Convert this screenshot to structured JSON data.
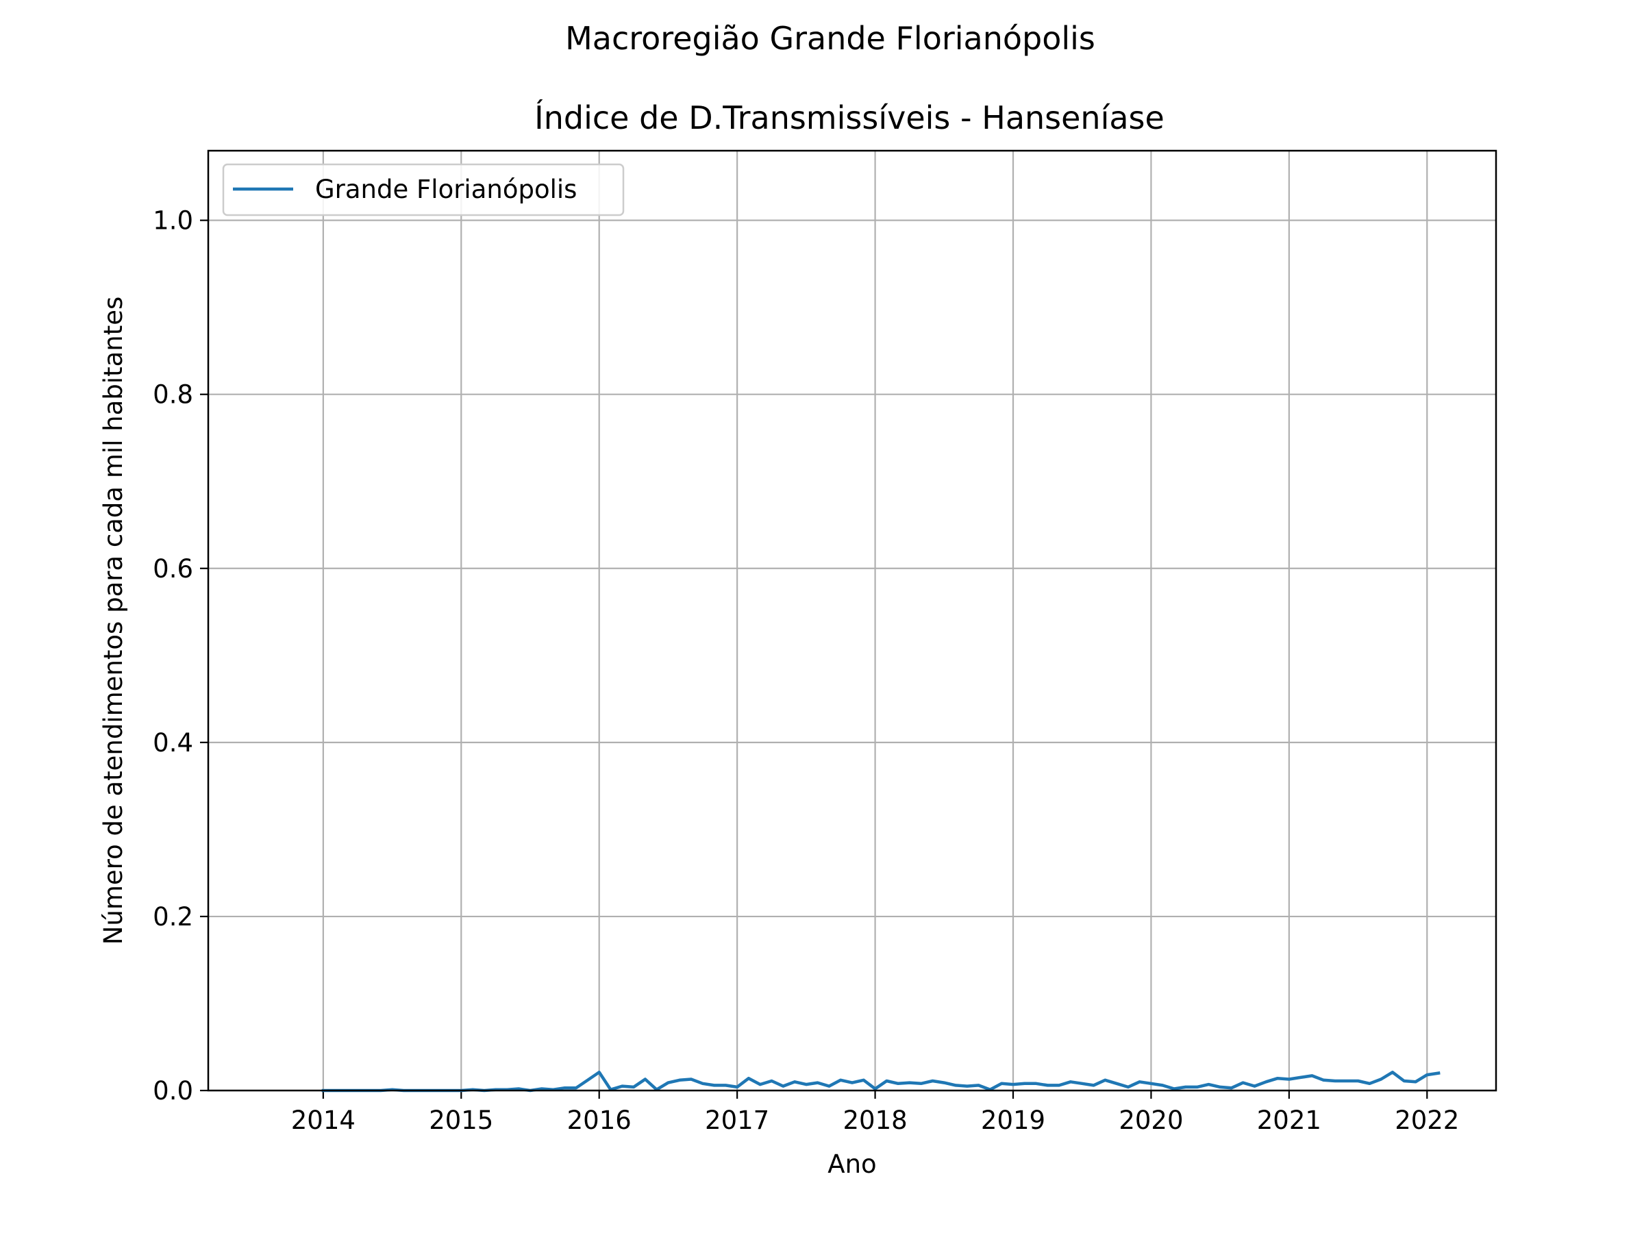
{
  "chart_data": {
    "type": "line",
    "suptitle": "Macroregião Grande Florianópolis",
    "title": "Índice de D.Transmissíveis - Hanseníase",
    "xlabel": "Ano",
    "ylabel": "Número de atendimentos para cada mil habitantes",
    "xlim": [
      "2013-03",
      "2022-07"
    ],
    "ylim": [
      0,
      1.08
    ],
    "xticks": [
      "2014",
      "2015",
      "2016",
      "2017",
      "2018",
      "2019",
      "2020",
      "2021",
      "2022"
    ],
    "yticks": [
      "0.0",
      "0.2",
      "0.4",
      "0.6",
      "0.8",
      "1.0"
    ],
    "grid": true,
    "legend_position": "top-left",
    "series_color": "#1f77b4",
    "series": [
      {
        "name": "Grande Florianópolis",
        "x": [
          "2014-01",
          "2014-02",
          "2014-03",
          "2014-04",
          "2014-05",
          "2014-06",
          "2014-07",
          "2014-08",
          "2014-09",
          "2014-10",
          "2014-11",
          "2014-12",
          "2015-01",
          "2015-02",
          "2015-03",
          "2015-04",
          "2015-05",
          "2015-06",
          "2015-07",
          "2015-08",
          "2015-09",
          "2015-10",
          "2015-11",
          "2015-12",
          "2016-01",
          "2016-02",
          "2016-03",
          "2016-04",
          "2016-05",
          "2016-06",
          "2016-07",
          "2016-08",
          "2016-09",
          "2016-10",
          "2016-11",
          "2016-12",
          "2017-01",
          "2017-02",
          "2017-03",
          "2017-04",
          "2017-05",
          "2017-06",
          "2017-07",
          "2017-08",
          "2017-09",
          "2017-10",
          "2017-11",
          "2017-12",
          "2018-01",
          "2018-02",
          "2018-03",
          "2018-04",
          "2018-05",
          "2018-06",
          "2018-07",
          "2018-08",
          "2018-09",
          "2018-10",
          "2018-11",
          "2018-12",
          "2019-01",
          "2019-02",
          "2019-03",
          "2019-04",
          "2019-05",
          "2019-06",
          "2019-07",
          "2019-08",
          "2019-09",
          "2019-10",
          "2019-11",
          "2019-12",
          "2020-01",
          "2020-02",
          "2020-03",
          "2020-04",
          "2020-05",
          "2020-06",
          "2020-07",
          "2020-08",
          "2020-09",
          "2020-10",
          "2020-11",
          "2020-12",
          "2021-01",
          "2021-02",
          "2021-03",
          "2021-04",
          "2021-05",
          "2021-06",
          "2021-07",
          "2021-08",
          "2021-09",
          "2021-10",
          "2021-11",
          "2021-12",
          "2022-01",
          "2022-02"
        ],
        "values": [
          0.0,
          0.0,
          0.0,
          0.0,
          0.0,
          0.0,
          0.001,
          0.0,
          0.0,
          0.0,
          0.0,
          0.0,
          0.0,
          0.001,
          0.0,
          0.001,
          0.001,
          0.002,
          0.0,
          0.002,
          0.001,
          0.003,
          0.003,
          0.012,
          0.021,
          0.001,
          0.005,
          0.004,
          0.013,
          0.001,
          0.009,
          0.012,
          0.013,
          0.008,
          0.006,
          0.006,
          0.004,
          0.014,
          0.007,
          0.011,
          0.005,
          0.01,
          0.007,
          0.009,
          0.005,
          0.012,
          0.009,
          0.012,
          0.002,
          0.011,
          0.008,
          0.009,
          0.008,
          0.011,
          0.009,
          0.006,
          0.005,
          0.006,
          0.001,
          0.008,
          0.007,
          0.008,
          0.008,
          0.006,
          0.006,
          0.01,
          0.008,
          0.006,
          0.012,
          0.008,
          0.004,
          0.01,
          0.008,
          0.006,
          0.002,
          0.004,
          0.004,
          0.007,
          0.004,
          0.003,
          0.009,
          0.005,
          0.01,
          0.014,
          0.013,
          0.015,
          0.017,
          0.012,
          0.011,
          0.011,
          0.011,
          0.008,
          0.013,
          0.021,
          0.011,
          0.01,
          0.018,
          0.02
        ]
      }
    ]
  }
}
